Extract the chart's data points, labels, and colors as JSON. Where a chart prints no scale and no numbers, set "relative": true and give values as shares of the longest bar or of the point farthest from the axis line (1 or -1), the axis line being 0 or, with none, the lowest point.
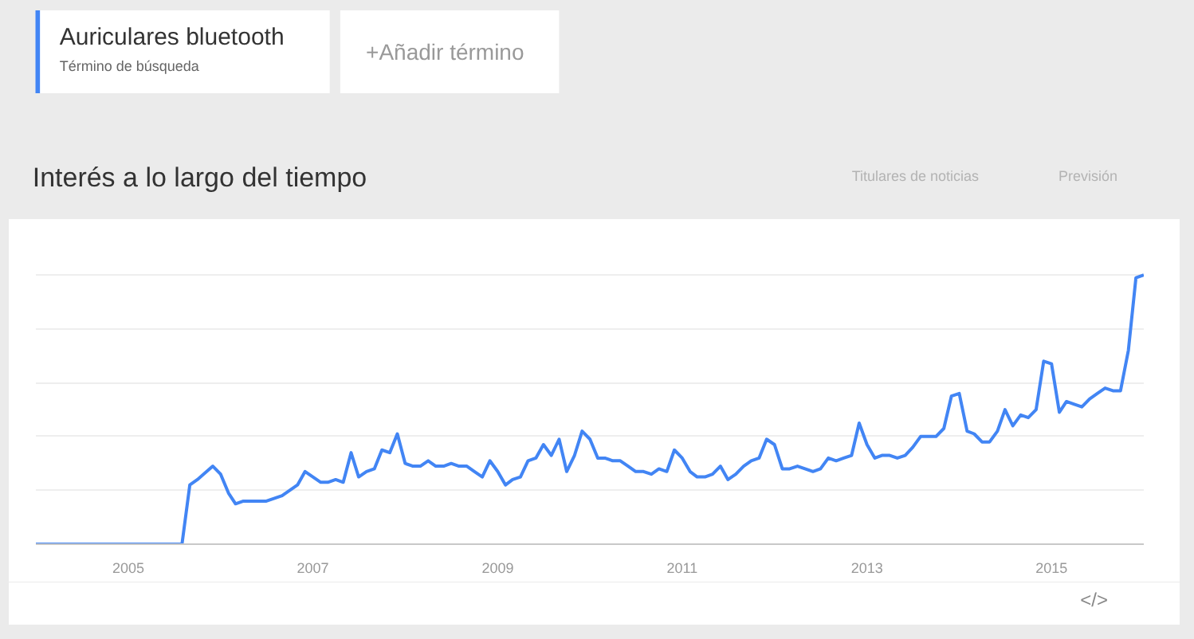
{
  "chart_data": {
    "type": "line",
    "title": "Interés a lo largo del tiempo",
    "annotations": [
      "Término de búsqueda",
      "+Añadir término",
      "Titulares de noticias",
      "Previsión",
      "</>"
    ],
    "relative": true,
    "grid": "y",
    "legend": "top left",
    "xlim": [
      "2004-01",
      "2016-01"
    ],
    "xticks": [
      "2005",
      "2007",
      "2009",
      "2011",
      "2013",
      "2015"
    ],
    "x": [
      "2004-01",
      "2005-08",
      "2005-09",
      "2005-10",
      "2005-12",
      "2006-01",
      "2006-02",
      "2006-03",
      "2006-04",
      "2006-07",
      "2006-09",
      "2006-11",
      "2006-12",
      "2007-02",
      "2007-03",
      "2007-04",
      "2007-05",
      "2007-06",
      "2007-07",
      "2007-08",
      "2007-09",
      "2007-10",
      "2007-11",
      "2007-12",
      "2008-01",
      "2008-02",
      "2008-03",
      "2008-04",
      "2008-05",
      "2008-06",
      "2008-07",
      "2008-08",
      "2008-09",
      "2008-10",
      "2008-11",
      "2008-12",
      "2009-01",
      "2009-02",
      "2009-03",
      "2009-04",
      "2009-05",
      "2009-06",
      "2009-07",
      "2009-08",
      "2009-09",
      "2009-10",
      "2009-11",
      "2009-12",
      "2010-01",
      "2010-02",
      "2010-03",
      "2010-04",
      "2010-05",
      "2010-06",
      "2010-07",
      "2010-08",
      "2010-09",
      "2010-10",
      "2010-11",
      "2010-12",
      "2011-01",
      "2011-02",
      "2011-03",
      "2011-04",
      "2011-05",
      "2011-06",
      "2011-07",
      "2011-08",
      "2011-09",
      "2011-10",
      "2011-11",
      "2011-12",
      "2012-01",
      "2012-02",
      "2012-03",
      "2012-04",
      "2012-05",
      "2012-06",
      "2012-07",
      "2012-08",
      "2012-09",
      "2012-10",
      "2012-11",
      "2012-12",
      "2013-01",
      "2013-02",
      "2013-03",
      "2013-04",
      "2013-05",
      "2013-06",
      "2013-07",
      "2013-08",
      "2013-09",
      "2013-10",
      "2013-11",
      "2013-12",
      "2014-01",
      "2014-02",
      "2014-03",
      "2014-04",
      "2014-05",
      "2014-06",
      "2014-07",
      "2014-08",
      "2014-09",
      "2014-10",
      "2014-11",
      "2014-12",
      "2015-01",
      "2015-02",
      "2015-03",
      "2015-04",
      "2015-05",
      "2015-06",
      "2015-07",
      "2015-08",
      "2015-09",
      "2015-10",
      "2015-11",
      "2015-12",
      "2016-01"
    ],
    "series": [
      {
        "name": "Auriculares bluetooth",
        "color": "#4285f4",
        "values": [
          0,
          0,
          0.22,
          0.24,
          0.29,
          0.26,
          0.19,
          0.15,
          0.16,
          0.16,
          0.18,
          0.22,
          0.27,
          0.23,
          0.23,
          0.24,
          0.23,
          0.34,
          0.25,
          0.27,
          0.28,
          0.35,
          0.34,
          0.41,
          0.3,
          0.29,
          0.29,
          0.31,
          0.29,
          0.29,
          0.3,
          0.29,
          0.29,
          0.27,
          0.25,
          0.31,
          0.27,
          0.22,
          0.24,
          0.25,
          0.31,
          0.32,
          0.37,
          0.33,
          0.39,
          0.27,
          0.33,
          0.42,
          0.39,
          0.32,
          0.32,
          0.31,
          0.31,
          0.29,
          0.27,
          0.27,
          0.26,
          0.28,
          0.27,
          0.35,
          0.32,
          0.27,
          0.25,
          0.25,
          0.26,
          0.29,
          0.24,
          0.26,
          0.29,
          0.31,
          0.32,
          0.39,
          0.37,
          0.28,
          0.28,
          0.29,
          0.28,
          0.27,
          0.28,
          0.32,
          0.31,
          0.32,
          0.33,
          0.45,
          0.37,
          0.32,
          0.33,
          0.33,
          0.32,
          0.33,
          0.36,
          0.4,
          0.4,
          0.4,
          0.43,
          0.55,
          0.56,
          0.42,
          0.41,
          0.38,
          0.38,
          0.42,
          0.5,
          0.44,
          0.48,
          0.47,
          0.5,
          0.68,
          0.67,
          0.49,
          0.53,
          0.52,
          0.51,
          0.54,
          0.56,
          0.58,
          0.57,
          0.57,
          0.72,
          0.99,
          1
        ]
      }
    ]
  }
}
